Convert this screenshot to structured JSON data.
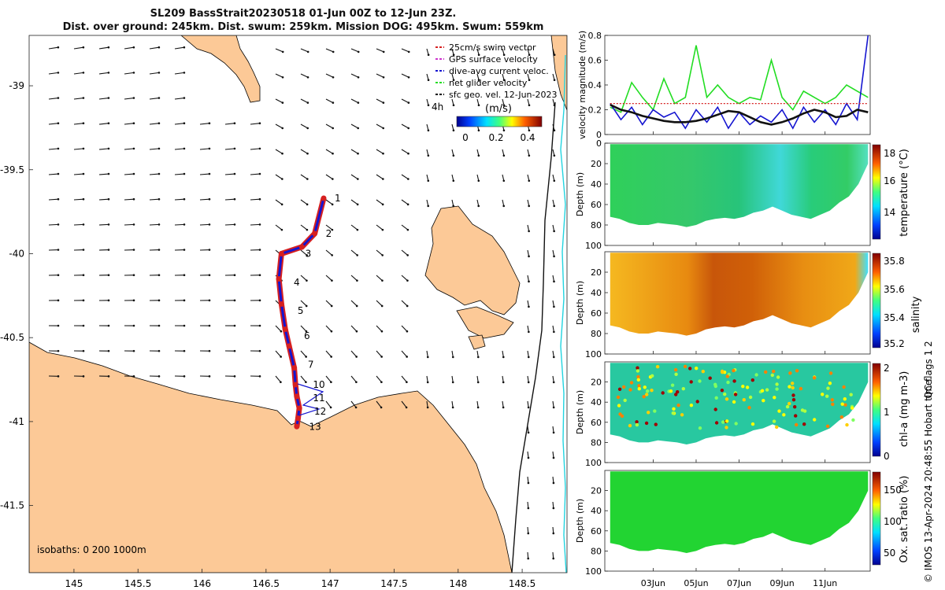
{
  "header": {
    "title_line1": "SL209 BassStrait20230518 01-Jun 00Z to 12-Jun 23Z.",
    "title_line2": "Dist. over ground: 245km. Dist. swum: 259km. Mission DOG: 495km. Swum: 559km"
  },
  "map": {
    "x_ticks": [
      "145",
      "145.5",
      "146",
      "146.5",
      "147",
      "147.5",
      "148",
      "148.5"
    ],
    "y_ticks": [
      "-39",
      "-39.5",
      "-40",
      "-40.5",
      "-41",
      "-41.5"
    ],
    "isobaths_label": "isobaths: 0   200  1000m",
    "legend": [
      {
        "label": "25cm/s swim vector",
        "color": "#d62020"
      },
      {
        "label": "GPS surface velocity",
        "color": "#cc33cc"
      },
      {
        "label": "dive-avg current veloc.",
        "color": "#1515d0"
      },
      {
        "label": "net glider velocity",
        "color": "#22dd22"
      },
      {
        "label": "sfc geo. vel. 12-Jun-2023",
        "color": "#000000"
      }
    ],
    "colorbar": {
      "tag": "4h",
      "units": "(m/s)",
      "ticks": [
        "0",
        "0.2",
        "0.4"
      ]
    },
    "day_labels": [
      "1",
      "2",
      "3",
      "4",
      "5",
      "6",
      "7",
      "10",
      "11",
      "12",
      "13"
    ]
  },
  "panels": {
    "x_ticks": [
      "03Jun",
      "05Jun",
      "07Jun",
      "09Jun",
      "11Jun"
    ],
    "depth_ticks": [
      "20",
      "40",
      "60",
      "80",
      "100"
    ],
    "depth_ticks_top": [
      "0",
      "20",
      "40",
      "60",
      "80",
      "100"
    ],
    "ylabel_depth": "Depth (m)",
    "velocity": {
      "ylabel": "velocity magnitude (m/s)",
      "y_ticks": [
        "0",
        "0.2",
        "0.4",
        "0.6",
        "0.8"
      ]
    },
    "temperature": {
      "label": "temperature (°C)",
      "ticks": [
        "14",
        "16",
        "18"
      ]
    },
    "salinity": {
      "label": "salinity",
      "ticks": [
        "35.2",
        "35.4",
        "35.6",
        "35.8"
      ]
    },
    "chla": {
      "label": "chl-a (mg m-3)",
      "ticks": [
        "0",
        "1",
        "2"
      ]
    },
    "oxygen": {
      "label": "Ox. sat. ratio (%)",
      "ticks": [
        "50",
        "100",
        "150"
      ]
    }
  },
  "footer": {
    "qc_note": "QC flags 1  2",
    "credit": "© IMOS 13-Apr-2024 20:48:55 Hobart time."
  },
  "chart_data": [
    {
      "type": "scatter",
      "title": "SL209 BassStrait20230518 01-Jun 00Z to 12-Jun 23Z.",
      "xlim": [
        144.65,
        148.85
      ],
      "ylim": [
        -41.9,
        -38.7
      ],
      "track": {
        "lon": [
          146.95,
          146.88,
          146.78,
          146.62,
          146.6,
          146.62,
          146.65,
          146.68,
          146.72,
          146.73,
          146.74,
          146.76,
          146.75,
          146.74
        ],
        "lat": [
          -39.67,
          -39.88,
          -39.96,
          -40.0,
          -40.15,
          -40.3,
          -40.45,
          -40.55,
          -40.68,
          -40.78,
          -40.85,
          -40.92,
          -40.98,
          -41.03
        ]
      },
      "day_markers": [
        {
          "label": "1",
          "lon": 146.95,
          "lat": -39.67
        },
        {
          "label": "2",
          "lon": 146.88,
          "lat": -39.88
        },
        {
          "label": "3",
          "lon": 146.72,
          "lat": -40.0
        },
        {
          "label": "4",
          "lon": 146.63,
          "lat": -40.17
        },
        {
          "label": "5",
          "lon": 146.66,
          "lat": -40.34
        },
        {
          "label": "6",
          "lon": 146.71,
          "lat": -40.49
        },
        {
          "label": "7",
          "lon": 146.74,
          "lat": -40.66
        },
        {
          "label": "10",
          "lon": 146.78,
          "lat": -40.78
        },
        {
          "label": "11",
          "lon": 146.78,
          "lat": -40.86
        },
        {
          "label": "12",
          "lon": 146.79,
          "lat": -40.94
        },
        {
          "label": "13",
          "lon": 146.75,
          "lat": -41.03
        }
      ],
      "colorbar_range": [
        0,
        0.5
      ]
    },
    {
      "type": "line",
      "ylabel": "velocity magnitude (m/s)",
      "ylim": [
        0,
        0.8
      ],
      "x_days": [
        1,
        1.5,
        2,
        2.5,
        3,
        3.5,
        4,
        4.5,
        5,
        5.5,
        6,
        6.5,
        7,
        7.5,
        8,
        8.5,
        9,
        9.5,
        10,
        10.5,
        11,
        11.5,
        12,
        12.5,
        13
      ],
      "series": [
        {
          "color": "#22dd22",
          "values": [
            0.22,
            0.18,
            0.42,
            0.3,
            0.2,
            0.45,
            0.25,
            0.3,
            0.72,
            0.3,
            0.4,
            0.3,
            0.25,
            0.3,
            0.28,
            0.6,
            0.3,
            0.2,
            0.35,
            0.3,
            0.25,
            0.3,
            0.4,
            0.35,
            0.3
          ]
        },
        {
          "color": "#1515d0",
          "values": [
            0.25,
            0.12,
            0.22,
            0.08,
            0.2,
            0.14,
            0.18,
            0.05,
            0.2,
            0.1,
            0.22,
            0.05,
            0.18,
            0.08,
            0.15,
            0.1,
            0.2,
            0.05,
            0.22,
            0.1,
            0.2,
            0.08,
            0.25,
            0.12,
            0.8
          ]
        },
        {
          "color": "#111111",
          "values": [
            0.24,
            0.2,
            0.18,
            0.15,
            0.13,
            0.11,
            0.1,
            0.1,
            0.11,
            0.13,
            0.16,
            0.19,
            0.18,
            0.14,
            0.1,
            0.08,
            0.1,
            0.13,
            0.17,
            0.2,
            0.18,
            0.14,
            0.15,
            0.2,
            0.18
          ]
        },
        {
          "color": "#d62020",
          "values": [
            0.25,
            0.25,
            0.25,
            0.25,
            0.25,
            0.25,
            0.25,
            0.25,
            0.25,
            0.25,
            0.25,
            0.25,
            0.25,
            0.25,
            0.25,
            0.25,
            0.25,
            0.25,
            0.25,
            0.25,
            0.25,
            0.25,
            0.25,
            0.25,
            0.25
          ]
        }
      ]
    },
    {
      "type": "heatmap",
      "ylim": [
        0,
        100
      ],
      "bottom_depth": [
        72,
        74,
        78,
        80,
        80,
        78,
        79,
        80,
        82,
        80,
        76,
        74,
        73,
        74,
        72,
        68,
        66,
        62,
        66,
        70,
        72,
        74,
        70,
        66,
        58,
        52,
        40,
        20
      ],
      "temperature_range": [
        12.5,
        18
      ],
      "salinity_range": [
        35.15,
        35.85
      ],
      "chla_range": [
        0,
        2
      ],
      "oxygen_range": [
        20,
        175
      ]
    }
  ]
}
